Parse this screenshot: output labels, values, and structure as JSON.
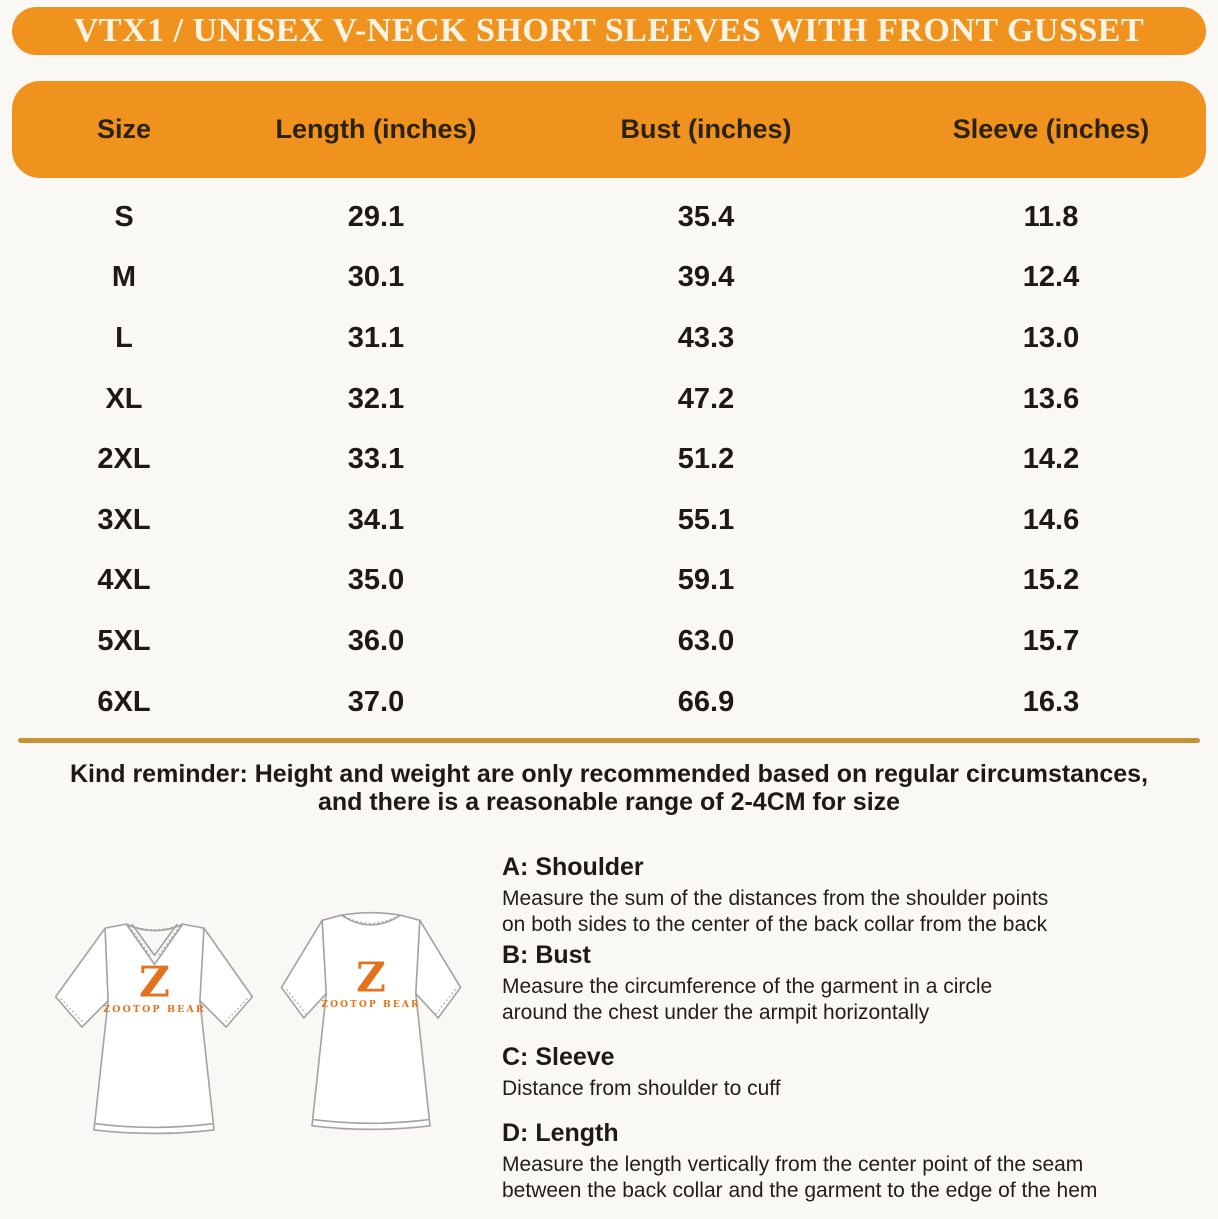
{
  "banner": {
    "title": "VTX1 / UNISEX V-NECK SHORT SLEEVES WITH FRONT GUSSET"
  },
  "table": {
    "columns": [
      "Size",
      "Length (inches)",
      "Bust (inches)",
      "Sleeve (inches)"
    ],
    "rows": [
      {
        "size": "S",
        "length": "29.1",
        "bust": "35.4",
        "sleeve": "11.8"
      },
      {
        "size": "M",
        "length": "30.1",
        "bust": "39.4",
        "sleeve": "12.4"
      },
      {
        "size": "L",
        "length": "31.1",
        "bust": "43.3",
        "sleeve": "13.0"
      },
      {
        "size": "XL",
        "length": "32.1",
        "bust": "47.2",
        "sleeve": "13.6"
      },
      {
        "size": "2XL",
        "length": "33.1",
        "bust": "51.2",
        "sleeve": "14.2"
      },
      {
        "size": "3XL",
        "length": "34.1",
        "bust": "55.1",
        "sleeve": "14.6"
      },
      {
        "size": "4XL",
        "length": "35.0",
        "bust": "59.1",
        "sleeve": "15.2"
      },
      {
        "size": "5XL",
        "length": "36.0",
        "bust": "63.0",
        "sleeve": "15.7"
      },
      {
        "size": "6XL",
        "length": "37.0",
        "bust": "66.9",
        "sleeve": "16.3"
      }
    ]
  },
  "reminder": "Kind reminder: Height and weight are only recommended based on regular circumstances,\nand there is a reasonable range of 2-4CM for size",
  "shirts": {
    "logo_glyph": "Z",
    "logo_text": "ZOOTOP BEAR"
  },
  "measurements": [
    {
      "label": "A: Shoulder",
      "description": "Measure the sum of the distances from the shoulder points\non both sides to the center of the back collar from the back"
    },
    {
      "label": "B: Bust",
      "description": "Measure the circumference of the garment in a circle\naround the chest under the armpit horizontally"
    },
    {
      "label": "C: Sleeve",
      "description": "Distance from shoulder to cuff"
    },
    {
      "label": "D: Length",
      "description": "Measure the length vertically from the center point of the seam\nbetween the back collar and the garment to the edge of the hem"
    }
  ],
  "colors": {
    "accent_orange": "#F0921E",
    "banner_text": "#FBF4E4",
    "divider_gold": "#C59333",
    "logo_orange": "#E2731C",
    "text_dark": "#1C1916"
  }
}
